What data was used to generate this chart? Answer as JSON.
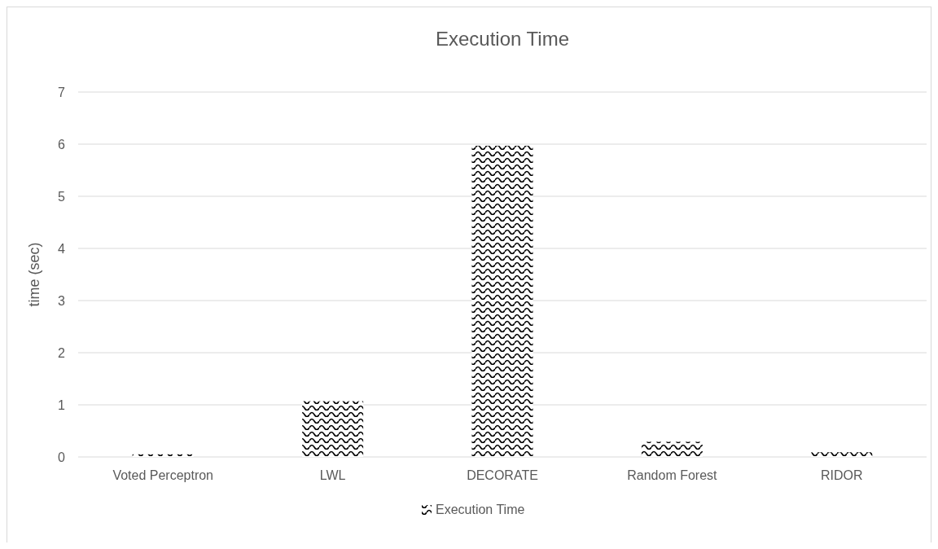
{
  "chart_data": {
    "type": "bar",
    "title": "Execution Time",
    "ylabel": "time (sec)",
    "categories": [
      "Voted Perceptron",
      "LWL",
      "DECORATE",
      "Random Forest",
      "RIDOR"
    ],
    "series": [
      {
        "name": "Execution Time",
        "color": "#000000",
        "values": [
          0.05,
          1.07,
          5.97,
          0.29,
          0.09
        ]
      }
    ],
    "ylim": [
      0,
      7
    ],
    "yticks": [
      0,
      1,
      2,
      3,
      4,
      5,
      6,
      7
    ],
    "grid": "y",
    "legend": "bottom"
  }
}
